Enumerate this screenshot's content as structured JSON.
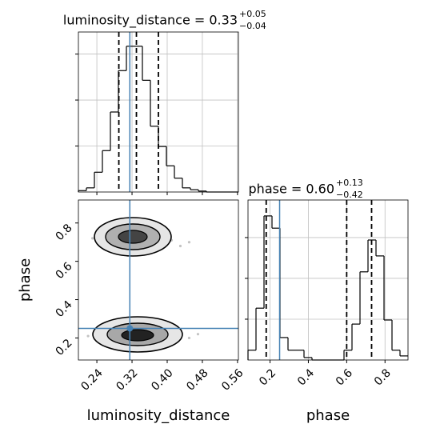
{
  "chart_data": [
    {
      "type": "histogram",
      "title": "luminosity_distance = 0.33",
      "title_upper": "+0.05",
      "title_lower": "−0.04",
      "bins": [
        0.198,
        0.2162,
        0.2344,
        0.2526,
        0.2708,
        0.289,
        0.3072,
        0.3254,
        0.3436,
        0.3618,
        0.38,
        0.3982,
        0.4164,
        0.4346,
        0.4528,
        0.471,
        0.4892,
        0.5074,
        0.5256,
        0.5438,
        0.562
      ],
      "counts": [
        3,
        9,
        43,
        90,
        174,
        264,
        317,
        317,
        243,
        143,
        99,
        57,
        30,
        9,
        5,
        2,
        0,
        0,
        0,
        0
      ],
      "xlim": [
        0.198,
        0.562
      ],
      "ylim": [
        0,
        348
      ],
      "yticks": [
        100,
        200,
        300
      ],
      "quantiles": [
        0.29,
        0.33,
        0.38
      ],
      "truth": 0.315,
      "truth_color": "#4682b4",
      "color": "#000000",
      "grid": true
    },
    {
      "type": "scatter",
      "x_label": "luminosity_distance",
      "y_label": "phase",
      "x": [
        0.31,
        0.34,
        0.29,
        0.36,
        0.32,
        0.27,
        0.38,
        0.33,
        0.3,
        0.35,
        0.25,
        0.41,
        0.31,
        0.34,
        0.28,
        0.37,
        0.23,
        0.43,
        0.33,
        0.3,
        0.39,
        0.26,
        0.45,
        0.32,
        0.32,
        0.35,
        0.29,
        0.37,
        0.33,
        0.27,
        0.4,
        0.31,
        0.34,
        0.3,
        0.24,
        0.42,
        0.36,
        0.28,
        0.38,
        0.33,
        0.22,
        0.45,
        0.31,
        0.35,
        0.26,
        0.4,
        0.47,
        0.29
      ],
      "y": [
        0.7,
        0.72,
        0.68,
        0.69,
        0.74,
        0.71,
        0.7,
        0.66,
        0.75,
        0.67,
        0.69,
        0.71,
        0.63,
        0.77,
        0.73,
        0.65,
        0.72,
        0.68,
        0.7,
        0.66,
        0.74,
        0.66,
        0.7,
        0.79,
        0.21,
        0.22,
        0.2,
        0.19,
        0.24,
        0.22,
        0.21,
        0.17,
        0.26,
        0.23,
        0.2,
        0.23,
        0.16,
        0.25,
        0.24,
        0.19,
        0.21,
        0.2,
        0.28,
        0.14,
        0.18,
        0.17,
        0.22,
        0.15
      ],
      "xlim": [
        0.198,
        0.562
      ],
      "ylim": [
        0.085,
        0.92
      ],
      "xticks": [
        0.24,
        0.32,
        {
          "value": 0.4,
          "label": "0.40"
        },
        0.48,
        0.56
      ],
      "yticks": [
        0.2,
        0.4,
        0.6,
        0.8
      ],
      "truth_x": 0.315,
      "truth_y": 0.25,
      "truth_color": "#4682b4",
      "color": "#888888"
    },
    {
      "type": "histogram",
      "title": "phase = 0.60",
      "title_upper": "+0.13",
      "title_lower": "−0.42",
      "x_label": "phase",
      "bins": [
        0.085,
        0.12675,
        0.1685,
        0.21025,
        0.252,
        0.29375,
        0.3355,
        0.37725,
        0.419,
        0.46075,
        0.5025,
        0.54425,
        0.586,
        0.62775,
        0.6695,
        0.71125,
        0.753,
        0.79475,
        0.8365,
        0.87825,
        0.92
      ],
      "counts": [
        24,
        127,
        353,
        323,
        55,
        24,
        24,
        6,
        0,
        0,
        0,
        0,
        24,
        88,
        216,
        294,
        255,
        98,
        24,
        10
      ],
      "xlim": [
        0.085,
        0.92
      ],
      "ylim": [
        0,
        392
      ],
      "xticks": [
        0.2,
        0.4,
        0.6,
        0.8
      ],
      "yticks": [
        100,
        200,
        300
      ],
      "quantiles": [
        0.18,
        0.6,
        0.73
      ],
      "truth": 0.25,
      "truth_color": "#4682b4",
      "color": "#000000",
      "grid": true
    }
  ]
}
